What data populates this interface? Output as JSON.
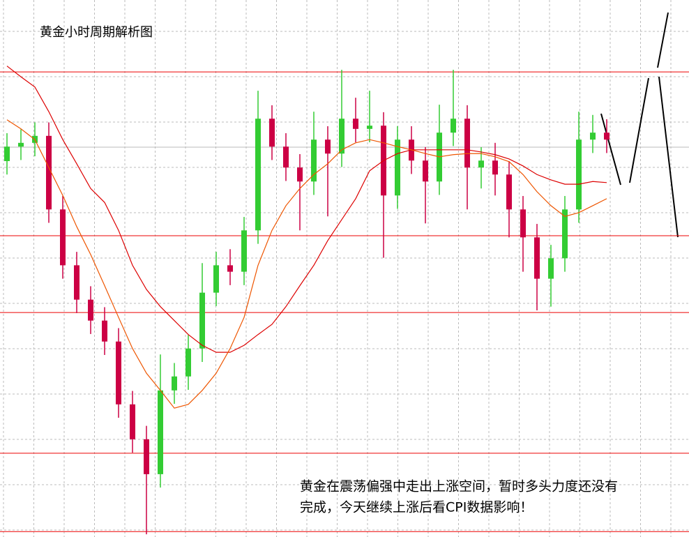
{
  "chart_data": {
    "type": "candlestick",
    "title": "黄金小时周期解析图",
    "annotation": [
      "黄金在震荡偏强中走出上涨空间，暂时多头力度还没有",
      "完成，今天继续上涨后看CPI数据影响！"
    ],
    "ylim": [
      0,
      100
    ],
    "up_color": "#33cc33",
    "down_color": "#cc0044",
    "open": [
      70.0,
      72.7,
      73.4,
      74.7,
      61.0,
      50.6,
      44.2,
      40.3,
      36.4,
      24.7,
      18.2,
      11.7,
      27.3,
      29.9,
      35.1,
      45.5,
      50.6,
      49.4,
      57.1,
      77.9,
      72.7,
      68.8,
      66.2,
      74.0,
      71.4,
      77.9,
      76.0,
      76.6,
      63.6,
      74.0,
      70.1,
      66.2,
      75.3,
      77.9,
      68.8,
      70.1,
      67.5,
      61.0,
      55.8,
      48.1,
      51.9,
      61.0,
      74.0,
      75.3
    ],
    "high": [
      75.2,
      75.9,
      77.2,
      77.2,
      63.5,
      53.1,
      46.7,
      42.8,
      38.9,
      27.2,
      20.7,
      34.0,
      32.4,
      37.6,
      51.0,
      53.1,
      53.6,
      59.6,
      83.1,
      80.4,
      75.2,
      71.3,
      79.2,
      76.5,
      87.0,
      81.8,
      83.1,
      79.1,
      76.5,
      76.5,
      72.6,
      80.5,
      87.0,
      80.4,
      72.6,
      73.4,
      70.0,
      63.5,
      58.3,
      54.4,
      63.5,
      79.2,
      78.6,
      77.8
    ],
    "low": [
      67.5,
      70.2,
      70.9,
      58.5,
      48.1,
      41.7,
      37.8,
      33.9,
      22.2,
      15.7,
      0.5,
      9.2,
      24.8,
      27.4,
      32.6,
      43.0,
      46.9,
      46.9,
      54.6,
      70.2,
      66.3,
      57.1,
      63.7,
      59.7,
      68.9,
      73.5,
      73.5,
      52.0,
      61.1,
      67.6,
      58.4,
      63.7,
      72.8,
      61.0,
      64.9,
      63.6,
      55.8,
      49.4,
      42.2,
      42.9,
      49.4,
      58.5,
      71.5,
      71.5
    ],
    "close": [
      72.7,
      73.4,
      74.7,
      61.0,
      50.6,
      44.2,
      40.3,
      36.4,
      24.7,
      18.2,
      11.7,
      27.3,
      29.9,
      35.1,
      45.5,
      50.6,
      49.4,
      57.1,
      77.9,
      72.7,
      68.8,
      66.2,
      74.0,
      71.4,
      77.9,
      76.0,
      76.6,
      63.6,
      74.0,
      70.1,
      66.2,
      75.3,
      77.9,
      68.8,
      70.1,
      67.5,
      61.0,
      55.8,
      48.1,
      51.9,
      61.0,
      74.0,
      75.3,
      74.0
    ],
    "lines": [
      {
        "color": "#dd0000",
        "values": [
          87.7,
          85.7,
          83.8,
          79.2,
          74.0,
          69.5,
          64.9,
          62.3,
          57.1,
          50.6,
          46.1,
          42.9,
          40.3,
          37.7,
          35.7,
          34.4,
          34.4,
          35.7,
          37.7,
          39.6,
          42.9,
          46.8,
          50.6,
          55.2,
          59.1,
          63.0,
          68.2,
          70.1,
          71.4,
          72.1,
          72.1,
          72.1,
          72.1,
          72.1,
          71.7,
          71.2,
          70.4,
          69.1,
          67.5,
          66.5,
          65.7,
          65.7,
          66.2,
          66.0
        ]
      },
      {
        "color": "#ee5500",
        "values": [
          77.7,
          76.0,
          74.0,
          68.8,
          63.6,
          57.8,
          52.6,
          46.8,
          40.9,
          35.1,
          30.5,
          27.3,
          24.0,
          24.7,
          27.3,
          30.5,
          35.1,
          40.9,
          50.6,
          57.1,
          61.7,
          64.9,
          67.5,
          69.5,
          72.1,
          73.4,
          74.0,
          73.4,
          72.7,
          72.1,
          71.4,
          70.8,
          71.2,
          71.4,
          71.4,
          70.8,
          69.9,
          67.5,
          64.3,
          61.7,
          59.7,
          60.4,
          61.7,
          63.0
        ]
      }
    ],
    "levels": [
      86.6,
      56.1,
      41.8,
      15.6,
      1.0
    ],
    "level_color": "#ee0000"
  }
}
